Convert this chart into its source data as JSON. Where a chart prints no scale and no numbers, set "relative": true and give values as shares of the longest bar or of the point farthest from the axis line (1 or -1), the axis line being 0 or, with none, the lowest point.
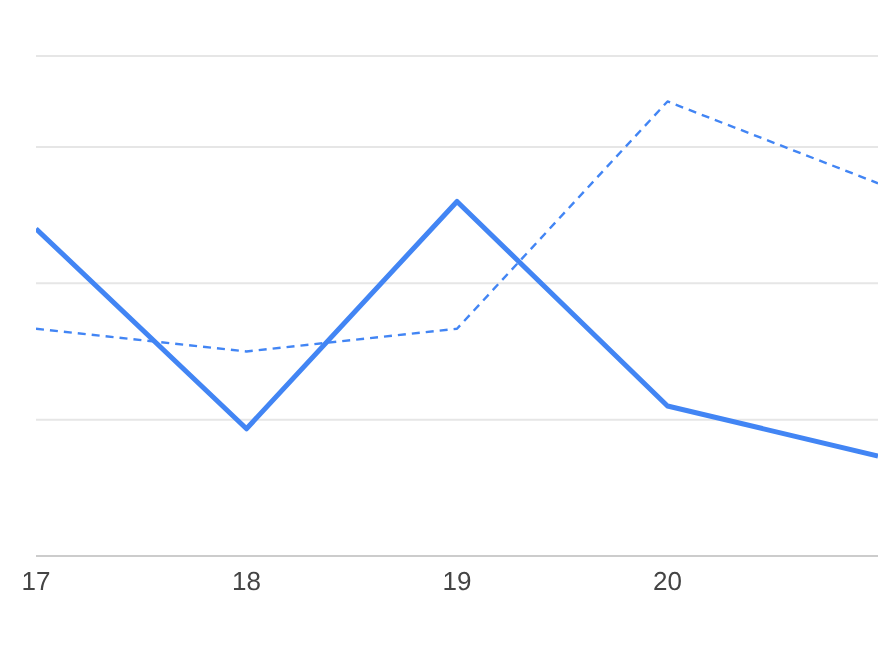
{
  "chart_data": {
    "type": "line",
    "relative": true,
    "categories": [
      "17",
      "18",
      "19",
      "20",
      null
    ],
    "series": [
      {
        "color": "#4285f4",
        "values": [
          0.72,
          0.28,
          0.78,
          0.33,
          0.22
        ],
        "line_style": "solid"
      },
      {
        "color": "#4285f4",
        "values": [
          0.5,
          0.45,
          0.5,
          1.0,
          0.82
        ],
        "line_style": "dashed"
      }
    ],
    "grid": "y",
    "marker": "none"
  }
}
